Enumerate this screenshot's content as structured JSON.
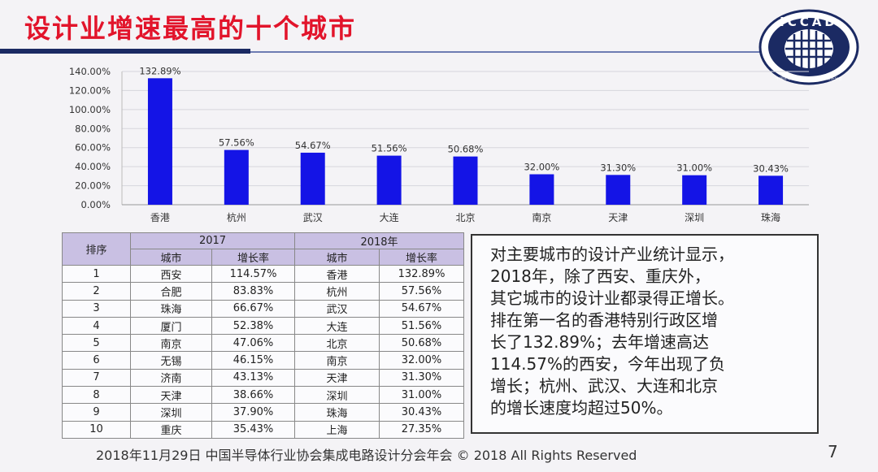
{
  "title": "设计业增速最高的十个城市",
  "logo": {
    "text": "ICCAD",
    "ring_text": "中国半导体行业协会集成电路设计分会"
  },
  "chart_data": {
    "type": "bar",
    "title": "",
    "xlabel": "",
    "ylabel": "",
    "categories": [
      "香港",
      "杭州",
      "武汉",
      "大连",
      "北京",
      "南京",
      "天津",
      "深圳",
      "珠海"
    ],
    "values": [
      132.89,
      57.56,
      54.67,
      51.56,
      50.68,
      32.0,
      31.3,
      31.0,
      30.43
    ],
    "value_labels": [
      "132.89%",
      "57.56%",
      "54.67%",
      "51.56%",
      "50.68%",
      "32.00%",
      "31.30%",
      "31.00%",
      "30.43%"
    ],
    "ylim": [
      0,
      140
    ],
    "yticks": [
      0,
      20,
      40,
      60,
      80,
      100,
      120,
      140
    ],
    "ytick_labels": [
      "0.00%",
      "20.00%",
      "40.00%",
      "60.00%",
      "80.00%",
      "100.00%",
      "120.00%",
      "140.00%"
    ],
    "grid": true,
    "bar_color": "#1414e6"
  },
  "table": {
    "rank_header": "排序",
    "year_2017": "2017",
    "year_2018": "2018年",
    "col_city": "城市",
    "col_rate": "增长率",
    "rows": [
      {
        "rank": "1",
        "city17": "西安",
        "rate17": "114.57%",
        "city18": "香港",
        "rate18": "132.89%"
      },
      {
        "rank": "2",
        "city17": "合肥",
        "rate17": "83.83%",
        "city18": "杭州",
        "rate18": "57.56%"
      },
      {
        "rank": "3",
        "city17": "珠海",
        "rate17": "66.67%",
        "city18": "武汉",
        "rate18": "54.67%"
      },
      {
        "rank": "4",
        "city17": "厦门",
        "rate17": "52.38%",
        "city18": "大连",
        "rate18": "51.56%"
      },
      {
        "rank": "5",
        "city17": "南京",
        "rate17": "47.06%",
        "city18": "北京",
        "rate18": "50.68%"
      },
      {
        "rank": "6",
        "city17": "无锡",
        "rate17": "46.15%",
        "city18": "南京",
        "rate18": "32.00%"
      },
      {
        "rank": "7",
        "city17": "济南",
        "rate17": "43.13%",
        "city18": "天津",
        "rate18": "31.30%"
      },
      {
        "rank": "8",
        "city17": "天津",
        "rate17": "38.66%",
        "city18": "深圳",
        "rate18": "31.00%"
      },
      {
        "rank": "9",
        "city17": "深圳",
        "rate17": "37.90%",
        "city18": "珠海",
        "rate18": "30.43%"
      },
      {
        "rank": "10",
        "city17": "重庆",
        "rate17": "35.43%",
        "city18": "上海",
        "rate18": "27.35%"
      }
    ]
  },
  "summary": {
    "lines": [
      "对主要城市的设计产业统计显示，",
      "2018年，除了西安、重庆外，",
      "其它城市的设计业都录得正增长。",
      "排在第一名的香港特别行政区增",
      "长了132.89%；去年增速高达",
      "114.57%的西安，今年出现了负",
      "增长；杭州、武汉、大连和北京",
      "的增长速度均超过50%。"
    ]
  },
  "footer": "2018年11月29日  中国半导体行业协会集成电路设计分会年会 © 2018 All Rights Reserved",
  "page_number": "7",
  "colors": {
    "title": "#e2142b",
    "header_bg": "#c9c0e3",
    "rule_dark": "#1b2a63"
  }
}
